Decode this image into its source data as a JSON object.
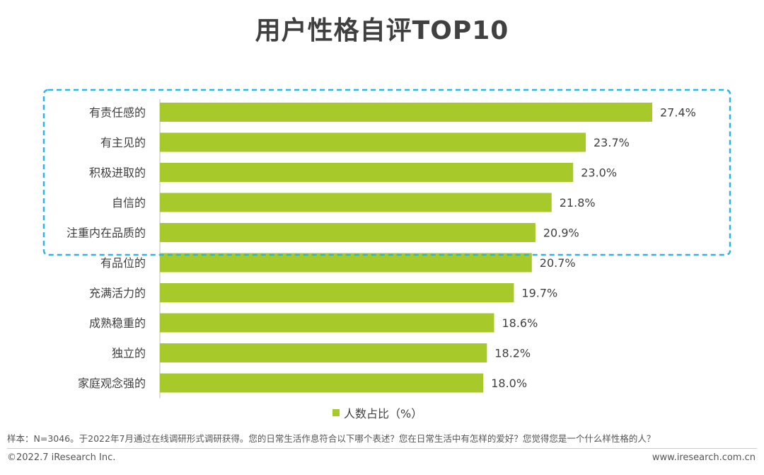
{
  "title": "用户性格自评TOP10",
  "chart_data": {
    "type": "bar",
    "orientation": "horizontal",
    "title": "用户性格自评TOP10",
    "categories": [
      "有责任感的",
      "有主见的",
      "积极进取的",
      "自信的",
      "注重内在品质的",
      "有品位的",
      "充满活力的",
      "成熟稳重的",
      "独立的",
      "家庭观念强的"
    ],
    "values": [
      27.4,
      23.7,
      23.0,
      21.8,
      20.9,
      20.7,
      19.7,
      18.6,
      18.2,
      18.0
    ],
    "value_labels": [
      "27.4%",
      "23.7%",
      "23.0%",
      "21.8%",
      "20.9%",
      "20.7%",
      "19.7%",
      "18.6%",
      "18.2%",
      "18.0%"
    ],
    "series_name": "人数占比（%）",
    "highlight_top_n": 5,
    "xlim": [
      0,
      27.4
    ],
    "bar_color": "#a8c92a",
    "highlight_color": "#29b6e6"
  },
  "legend": {
    "label": "人数占比（%）"
  },
  "note": "样本：N=3046。于2022年7月通过在线调研形式调研获得。您的日常生活作息符合以下哪个表述？您在日常生活中有怎样的爱好？您觉得您是一个什么样性格的人？",
  "footer": {
    "copyright": "©2022.7 iResearch Inc.",
    "website": "www.iresearch.com.cn"
  }
}
